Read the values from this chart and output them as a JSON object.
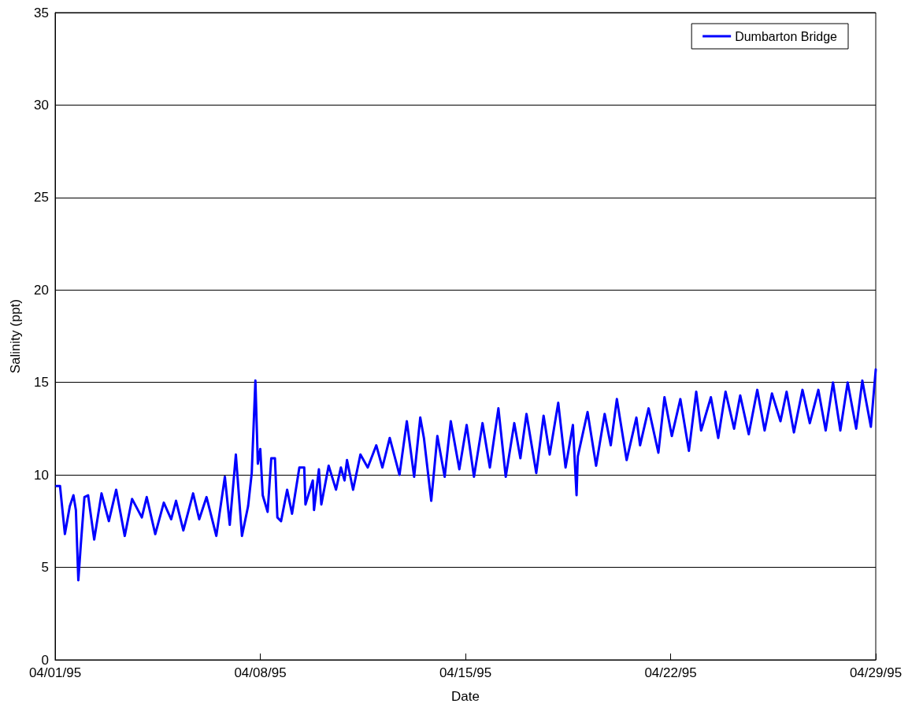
{
  "chart_data": {
    "type": "line",
    "xlabel": "Date",
    "ylabel": "Salinity (ppt)",
    "x": [
      "1995-04-01T01:00",
      "1995-04-01T04:00",
      "1995-04-01T08:00",
      "1995-04-01T12:00",
      "1995-04-01T15:00",
      "1995-04-01T17:00",
      "1995-04-01T19:00",
      "1995-04-01T21:00",
      "1995-04-02T00:00",
      "1995-04-02T03:00",
      "1995-04-02T08:00",
      "1995-04-02T14:00",
      "1995-04-02T20:00",
      "1995-04-03T02:00",
      "1995-04-03T09:00",
      "1995-04-03T15:00",
      "1995-04-03T23:00",
      "1995-04-04T03:00",
      "1995-04-04T10:00",
      "1995-04-04T17:00",
      "1995-04-04T23:00",
      "1995-04-05T03:00",
      "1995-04-05T09:00",
      "1995-04-05T17:00",
      "1995-04-05T22:00",
      "1995-04-06T04:00",
      "1995-04-06T12:00",
      "1995-04-06T19:00",
      "1995-04-06T23:00",
      "1995-04-07T04:00",
      "1995-04-07T09:00",
      "1995-04-07T14:00",
      "1995-04-07T17:00",
      "1995-04-07T20:00",
      "1995-04-07T22:00",
      "1995-04-08T00:00",
      "1995-04-08T02:00",
      "1995-04-08T06:00",
      "1995-04-08T09:00",
      "1995-04-08T12:00",
      "1995-04-08T14:00",
      "1995-04-08T17:00",
      "1995-04-08T22:00",
      "1995-04-09T02:00",
      "1995-04-09T08:00",
      "1995-04-09T12:00",
      "1995-04-09T13:00",
      "1995-04-09T19:00",
      "1995-04-09T20:00",
      "1995-04-10T00:00",
      "1995-04-10T02:00",
      "1995-04-10T08:00",
      "1995-04-10T14:00",
      "1995-04-10T18:00",
      "1995-04-10T21:00",
      "1995-04-10T23:00",
      "1995-04-11T04:00",
      "1995-04-11T10:00",
      "1995-04-11T16:00",
      "1995-04-11T23:00",
      "1995-04-12T04:00",
      "1995-04-12T10:00",
      "1995-04-12T18:00",
      "1995-04-13T00:00",
      "1995-04-13T06:00",
      "1995-04-13T11:00",
      "1995-04-13T14:00",
      "1995-04-13T20:00",
      "1995-04-14T01:00",
      "1995-04-14T07:00",
      "1995-04-14T12:00",
      "1995-04-14T19:00",
      "1995-04-15T01:00",
      "1995-04-15T07:00",
      "1995-04-15T14:00",
      "1995-04-15T20:00",
      "1995-04-16T03:00",
      "1995-04-16T09:00",
      "1995-04-16T16:00",
      "1995-04-16T21:00",
      "1995-04-17T02:00",
      "1995-04-17T10:00",
      "1995-04-17T16:00",
      "1995-04-17T21:00",
      "1995-04-18T04:00",
      "1995-04-18T10:00",
      "1995-04-18T16:00",
      "1995-04-18T19:00",
      "1995-04-18T20:00",
      "1995-04-19T04:00",
      "1995-04-19T11:00",
      "1995-04-19T18:00",
      "1995-04-19T23:00",
      "1995-04-20T04:00",
      "1995-04-20T12:00",
      "1995-04-20T20:00",
      "1995-04-20T23:00",
      "1995-04-21T06:00",
      "1995-04-21T14:00",
      "1995-04-21T19:00",
      "1995-04-22T01:00",
      "1995-04-22T08:00",
      "1995-04-22T15:00",
      "1995-04-22T21:00",
      "1995-04-23T01:00",
      "1995-04-23T09:00",
      "1995-04-23T15:00",
      "1995-04-23T21:00",
      "1995-04-24T04:00",
      "1995-04-24T09:00",
      "1995-04-24T16:00",
      "1995-04-24T23:00",
      "1995-04-25T05:00",
      "1995-04-25T11:00",
      "1995-04-25T18:00",
      "1995-04-25T23:00",
      "1995-04-26T05:00",
      "1995-04-26T12:00",
      "1995-04-26T18:00",
      "1995-04-27T01:00",
      "1995-04-27T07:00",
      "1995-04-27T13:00",
      "1995-04-27T19:00",
      "1995-04-28T01:00",
      "1995-04-28T08:00",
      "1995-04-28T13:00",
      "1995-04-28T20:00",
      "1995-04-29T00:00"
    ],
    "series": [
      {
        "name": "Dumbarton Bridge",
        "color": "#0000ff",
        "values": [
          9.4,
          9.4,
          6.8,
          8.3,
          8.9,
          8.1,
          4.3,
          6.2,
          8.8,
          8.9,
          6.5,
          9.0,
          7.5,
          9.2,
          6.7,
          8.7,
          7.7,
          8.8,
          6.8,
          8.5,
          7.6,
          8.6,
          7.0,
          9.0,
          7.6,
          8.8,
          6.7,
          9.9,
          7.3,
          11.1,
          6.7,
          8.3,
          10.1,
          15.1,
          10.6,
          11.4,
          8.9,
          8.0,
          10.9,
          10.9,
          7.7,
          7.5,
          9.2,
          7.9,
          10.4,
          10.4,
          8.4,
          9.7,
          8.1,
          10.3,
          8.4,
          10.5,
          9.2,
          10.4,
          9.7,
          10.8,
          9.2,
          11.1,
          10.4,
          11.6,
          10.4,
          12.0,
          10.0,
          12.9,
          9.9,
          13.1,
          12.0,
          8.6,
          12.1,
          9.9,
          12.9,
          10.3,
          12.7,
          9.9,
          12.8,
          10.4,
          13.6,
          9.9,
          12.8,
          10.9,
          13.3,
          10.1,
          13.2,
          11.1,
          13.9,
          10.4,
          12.7,
          8.9,
          11.0,
          13.4,
          10.5,
          13.3,
          11.6,
          14.1,
          10.8,
          13.1,
          11.6,
          13.6,
          11.2,
          14.2,
          12.1,
          14.1,
          11.3,
          14.5,
          12.4,
          14.2,
          12.0,
          14.5,
          12.5,
          14.3,
          12.2,
          14.6,
          12.4,
          14.4,
          12.9,
          14.5,
          12.3,
          14.6,
          12.8,
          14.6,
          12.4,
          15.0,
          12.4,
          15.0,
          12.5,
          15.1,
          12.6,
          15.7
        ]
      }
    ],
    "xlim": [
      "1995-04-01",
      "1995-04-29"
    ],
    "xticks": [
      {
        "value": "1995-04-01",
        "label": "04/01/95"
      },
      {
        "value": "1995-04-08",
        "label": "04/08/95"
      },
      {
        "value": "1995-04-15",
        "label": "04/15/95"
      },
      {
        "value": "1995-04-22",
        "label": "04/22/95"
      },
      {
        "value": "1995-04-29",
        "label": "04/29/95"
      }
    ],
    "ylim": [
      0,
      35
    ],
    "yticks": [
      0,
      5,
      10,
      15,
      20,
      25,
      30,
      35
    ],
    "grid": "y",
    "legend": "top right",
    "marker": "none",
    "line_style": "solid"
  }
}
